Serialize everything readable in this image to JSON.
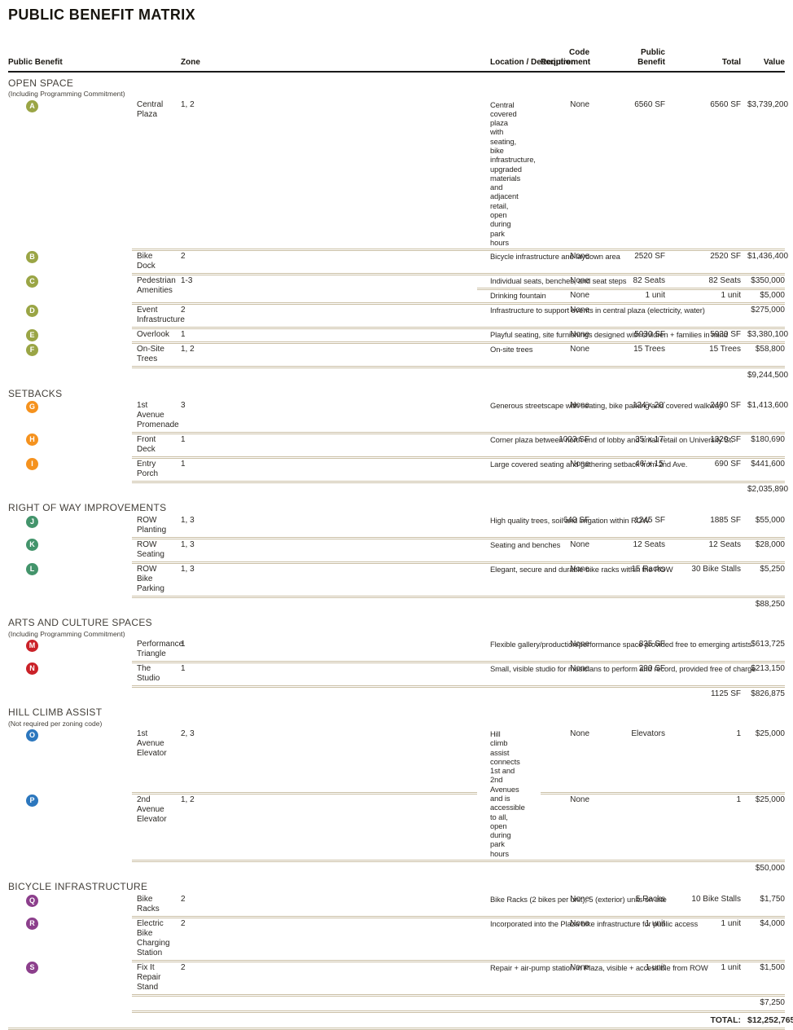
{
  "title": "PUBLIC BENEFIT MATRIX",
  "header": {
    "public_benefit": "Public Benefit",
    "zone": "Zone",
    "location": "Location / Description",
    "code_requirement_line1": "Code",
    "code_requirement_line2": "Requirement",
    "benefit_line1": "Public",
    "benefit_line2": "Benefit",
    "total": "Total",
    "value": "Value"
  },
  "colors": {
    "header_rule": "#1a1a1a",
    "divider": "#cbc0a6",
    "open_space_badge": "#9aa545",
    "setbacks_badge": "#f5921e",
    "right_of_way_badge": "#43946b",
    "arts_badge": "#ca2128",
    "hill_climb_badge": "#2c77be",
    "bicycle_badge": "#8c3f8c"
  },
  "sections": [
    {
      "id": "open-space",
      "title": "OPEN SPACE",
      "note": "(Including Programming Commitment)",
      "badge_color": "#9aa545",
      "rows": [
        {
          "letter": "A",
          "name": "Central Plaza",
          "zone": "1, 2",
          "desc": "Central covered plaza with seating, bike infrastructure, upgraded materials and adjacent retail, open during park hours",
          "code": "None",
          "benefit": "6560 SF",
          "total": "6560 SF",
          "value": "$3,739,200"
        },
        {
          "letter": "B",
          "name": "Bike Dock",
          "zone": "2",
          "desc": "Bicycle infrastructure and laydown area",
          "code": "None",
          "benefit": "2520 SF",
          "total": "2520 SF",
          "value": "$1,436,400"
        },
        {
          "letter": "C",
          "name": "Pedestrian Amenities",
          "zone": "1-3",
          "subrows": [
            {
              "desc": "Individual seats, benches, and seat steps",
              "code": "None",
              "benefit": "82 Seats",
              "total": "82 Seats",
              "value": "$350,000"
            },
            {
              "desc": "Drinking fountain",
              "code": "None",
              "benefit": "1 unit",
              "total": "1 unit",
              "value": "$5,000"
            }
          ]
        },
        {
          "letter": "D",
          "name": "Event Infrastructure",
          "zone": "2",
          "desc": "Infrastructure to support events in central plaza (electricity, water)",
          "code": "None",
          "benefit": "",
          "total": "",
          "value": "$275,000"
        },
        {
          "letter": "E",
          "name": "Overlook",
          "zone": "1",
          "desc": "Playful seating, site furnishings designed with children + families in mind",
          "code": "None",
          "benefit": "5930 SF",
          "total": "5930 SF",
          "value": "$3,380,100"
        },
        {
          "letter": "F",
          "name": "On-Site Trees",
          "zone": "1, 2",
          "desc": "On-site trees",
          "code": "None",
          "benefit": "15 Trees",
          "total": "15 Trees",
          "value": "$58,800"
        }
      ],
      "subtotal": {
        "total": "",
        "value": "$9,244,500"
      }
    },
    {
      "id": "setbacks",
      "title": "SETBACKS",
      "badge_color": "#f5921e",
      "rows": [
        {
          "letter": "G",
          "name": "1st Avenue Promenade",
          "zone": "3",
          "desc": "Generous streetscape with seating, bike parking and covered walkway",
          "code": "None",
          "benefit": "124’x 20’",
          "total": "2480 SF",
          "value": "$1,413,600"
        },
        {
          "letter": "H",
          "name": "Front Deck",
          "zone": "1",
          "desc": "Corner plaza between north end of lobby and small retail on University St.",
          "code": "1003 SF",
          "benefit": "35’ x 17’",
          "total": "1320 SF",
          "value": "$180,690"
        },
        {
          "letter": "I",
          "name": "Entry Porch",
          "zone": "1",
          "desc": "Large covered seating and gathering setback from 2nd Ave.",
          "code": "None",
          "benefit": "46’ x 15’",
          "total": "690 SF",
          "value": "$441,600"
        }
      ],
      "subtotal": {
        "total": "",
        "value": "$2,035,890"
      }
    },
    {
      "id": "right-of-way",
      "title": "RIGHT OF WAY IMPROVEMENTS",
      "badge_color": "#43946b",
      "rows": [
        {
          "letter": "J",
          "name": "ROW Planting",
          "zone": "1, 3",
          "desc": "High quality trees, soil and irrigation within ROW",
          "code": "640 SF",
          "benefit": "1245 SF",
          "total": "1885 SF",
          "value": "$55,000"
        },
        {
          "letter": "K",
          "name": "ROW Seating",
          "zone": "1, 3",
          "desc": "Seating and benches",
          "code": "None",
          "benefit": "12 Seats",
          "total": "12 Seats",
          "value": "$28,000"
        },
        {
          "letter": "L",
          "name": "ROW Bike Parking",
          "zone": "1, 3",
          "desc": "Elegant, secure and durable bike racks within the ROW",
          "code": "None",
          "benefit": "15 Racks",
          "total": "30 Bike Stalls",
          "value": "$5,250"
        }
      ],
      "subtotal": {
        "total": "",
        "value": "$88,250"
      }
    },
    {
      "id": "arts-culture",
      "title": "ARTS AND CULTURE SPACES",
      "note": "(Including Programming Commitment)",
      "badge_color": "#ca2128",
      "rows": [
        {
          "letter": "M",
          "name": "Performance Triangle",
          "zone": "1",
          "desc": "Flexible gallery/production/performance space provided free to emerging artists",
          "code": "None",
          "benefit": "835 SF",
          "total": "",
          "value": "$613,725"
        },
        {
          "letter": "N",
          "name": "The Studio",
          "zone": "1",
          "desc": "Small, visible studio for musicians to perform and record, provided free of charge",
          "code": "None",
          "benefit": "290 SF",
          "total": "",
          "value": "$213,150"
        }
      ],
      "subtotal": {
        "total": "1125 SF",
        "value": "$826,875"
      }
    },
    {
      "id": "hill-climb",
      "title": "HILL CLIMB ASSIST",
      "note": "(Not required per zoning code)",
      "badge_color": "#2c77be",
      "shared_desc": "Hill climb assist connects 1st and 2nd Avenues and is accessible to all, open during park hours",
      "rows": [
        {
          "letter": "O",
          "name": "1st Avenue Elevator",
          "zone": "2, 3",
          "code": "None",
          "benefit": "Elevators",
          "total": "1",
          "value": "$25,000"
        },
        {
          "letter": "P",
          "name": "2nd Avenue Elevator",
          "zone": "1, 2",
          "code": "None",
          "benefit": "",
          "total": "1",
          "value": "$25,000"
        }
      ],
      "subtotal": {
        "total": "",
        "value": "$50,000"
      }
    },
    {
      "id": "bicycle",
      "title": "BICYCLE INFRASTRUCTURE",
      "badge_color": "#8c3f8c",
      "rows": [
        {
          "letter": "Q",
          "name": "Bike Racks",
          "zone": "2",
          "desc": "Bike Racks (2 bikes per unit), 5 (exterior) units on site",
          "code": "None",
          "benefit": "5 Racks",
          "total": "10 Bike Stalls",
          "value": "$1,750"
        },
        {
          "letter": "R",
          "name": "Electric Bike Charging Station",
          "zone": "2",
          "desc": "Incorporated into the Plaza bike infrastructure for public access",
          "code": "None",
          "benefit": "1 unit",
          "total": "1 unit",
          "value": "$4,000"
        },
        {
          "letter": "S",
          "name": "Fix It Repair Stand",
          "zone": "2",
          "desc": "Repair + air-pump station in Plaza, visible + accessible from ROW",
          "code": "None",
          "benefit": "1 unit",
          "total": "1 unit",
          "value": "$1,500"
        }
      ],
      "subtotal": {
        "total": "",
        "value": "$7,250"
      }
    }
  ],
  "grand_total": {
    "label": "TOTAL:",
    "value": "$12,252,765"
  }
}
